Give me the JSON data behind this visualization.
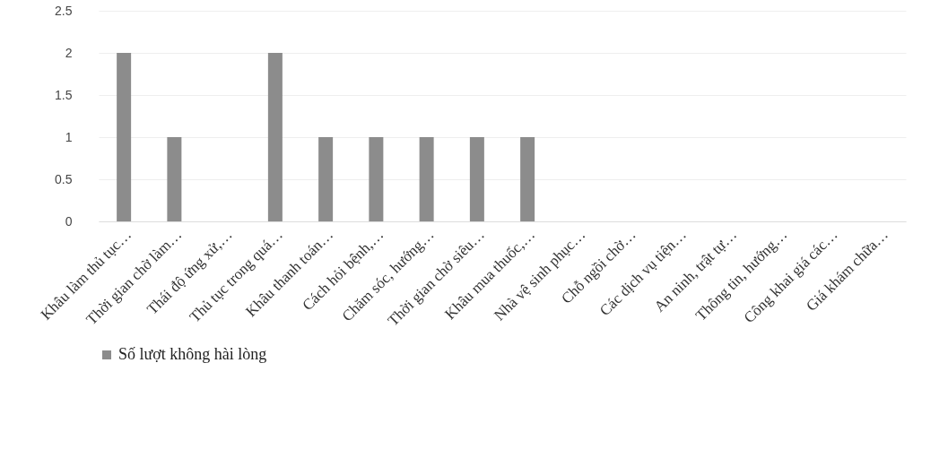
{
  "chart_data": {
    "type": "bar",
    "categories": [
      "Khâu làm thủ tục…",
      "Thời gian chờ làm…",
      "Thái độ ứng xử,…",
      "Thủ tục trong quá…",
      "Khâu thanh toán…",
      "Cách hỏi bệnh,…",
      "Chăm sóc, hướng…",
      "Thời gian chờ siêu…",
      "Khâu mua thuốc,…",
      "Nhà vệ sinh phục…",
      "Chỗ ngồi chờ…",
      "Các dịch vụ tiện…",
      "An ninh, trật tự…",
      "Thông tin, hướng…",
      "Công khai giá các…",
      "Giá khám chữa…"
    ],
    "series": [
      {
        "name": "Số lượt không hài lòng",
        "color": "#8c8c8c",
        "values": [
          2,
          1,
          0,
          2,
          1,
          1,
          1,
          1,
          1,
          0,
          0,
          0,
          0,
          0,
          0,
          0
        ]
      }
    ],
    "ylim": [
      0,
      2.5
    ],
    "yticks": [
      0,
      0.5,
      1,
      1.5,
      2,
      2.5
    ],
    "grid": "y",
    "legend": "bottom"
  }
}
